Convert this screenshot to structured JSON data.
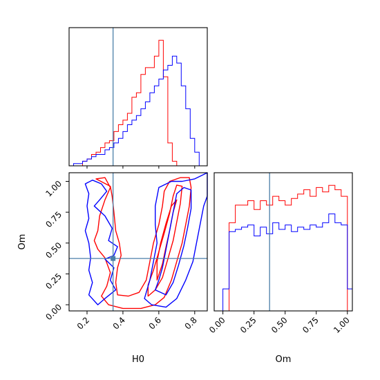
{
  "chart_data": [
    {
      "type": "histogram",
      "panel": "H0 marginal",
      "xlabel": "",
      "ylabel": "",
      "xlim": [
        0.1,
        0.87
      ],
      "truth": 0.345,
      "bin_edges": [
        0.1,
        0.125,
        0.15,
        0.175,
        0.2,
        0.225,
        0.25,
        0.275,
        0.3,
        0.325,
        0.35,
        0.375,
        0.4,
        0.425,
        0.45,
        0.475,
        0.5,
        0.525,
        0.55,
        0.575,
        0.6,
        0.625,
        0.65,
        0.675,
        0.7,
        0.725,
        0.75,
        0.775,
        0.8,
        0.825,
        0.85
      ],
      "series": [
        {
          "color": "#ff0000",
          "values": [
            0,
            0,
            0,
            2,
            3,
            5,
            6,
            8,
            10,
            11,
            15,
            18,
            20,
            23,
            30,
            32,
            40,
            43,
            43,
            48,
            55,
            39,
            10,
            2,
            0,
            0,
            0,
            0,
            0,
            0
          ]
        },
        {
          "color": "#0000ff",
          "values": [
            0,
            1,
            1,
            2,
            3,
            4,
            5,
            5,
            7,
            8,
            10,
            12,
            15,
            18,
            20,
            22,
            25,
            28,
            32,
            35,
            38,
            42,
            44,
            48,
            45,
            35,
            25,
            12,
            6,
            0
          ]
        }
      ]
    },
    {
      "type": "contour",
      "panel": "H0 vs Om",
      "xlabel": "H0",
      "ylabel": "Om",
      "xlim": [
        0.1,
        0.87
      ],
      "ylim": [
        -0.05,
        1.07
      ],
      "xticks": [
        "0.2",
        "0.4",
        "0.6",
        "0.8"
      ],
      "yticks": [
        "0.00",
        "0.25",
        "0.50",
        "0.75",
        "1.00"
      ],
      "truth": {
        "x": 0.345,
        "y": 0.375
      },
      "series": [
        {
          "color": "#ff0000",
          "contours": [
            [
              [
                0.25,
                1.02
              ],
              [
                0.3,
                1.03
              ],
              [
                0.33,
                0.95
              ],
              [
                0.3,
                0.85
              ],
              [
                0.27,
                0.72
              ],
              [
                0.26,
                0.6
              ],
              [
                0.24,
                0.52
              ],
              [
                0.26,
                0.45
              ],
              [
                0.3,
                0.38
              ],
              [
                0.33,
                0.26
              ],
              [
                0.31,
                0.15
              ],
              [
                0.28,
                0.07
              ],
              [
                0.32,
                0.0
              ],
              [
                0.4,
                -0.03
              ],
              [
                0.5,
                -0.03
              ],
              [
                0.58,
                0.0
              ],
              [
                0.63,
                0.06
              ],
              [
                0.67,
                0.2
              ],
              [
                0.7,
                0.35
              ],
              [
                0.73,
                0.5
              ],
              [
                0.75,
                0.65
              ],
              [
                0.77,
                0.8
              ],
              [
                0.78,
                0.95
              ],
              [
                0.77,
                1.03
              ],
              [
                0.72,
                1.03
              ],
              [
                0.66,
                1.0
              ],
              [
                0.63,
                0.92
              ],
              [
                0.62,
                0.8
              ],
              [
                0.6,
                0.65
              ],
              [
                0.57,
                0.5
              ],
              [
                0.55,
                0.35
              ],
              [
                0.53,
                0.2
              ],
              [
                0.49,
                0.1
              ],
              [
                0.43,
                0.07
              ],
              [
                0.37,
                0.08
              ],
              [
                0.36,
                0.18
              ],
              [
                0.37,
                0.3
              ],
              [
                0.39,
                0.4
              ],
              [
                0.38,
                0.5
              ],
              [
                0.36,
                0.6
              ],
              [
                0.35,
                0.75
              ],
              [
                0.34,
                0.88
              ],
              [
                0.33,
                0.96
              ]
            ],
            [
              [
                0.54,
                0.07
              ],
              [
                0.58,
                0.12
              ],
              [
                0.62,
                0.22
              ],
              [
                0.65,
                0.37
              ],
              [
                0.68,
                0.52
              ],
              [
                0.7,
                0.67
              ],
              [
                0.72,
                0.82
              ],
              [
                0.73,
                0.96
              ],
              [
                0.7,
                0.97
              ],
              [
                0.68,
                0.88
              ],
              [
                0.66,
                0.74
              ],
              [
                0.63,
                0.58
              ],
              [
                0.6,
                0.43
              ],
              [
                0.57,
                0.28
              ],
              [
                0.54,
                0.16
              ]
            ],
            [
              [
                0.59,
                0.2
              ],
              [
                0.62,
                0.33
              ],
              [
                0.64,
                0.47
              ],
              [
                0.66,
                0.6
              ],
              [
                0.68,
                0.75
              ],
              [
                0.7,
                0.85
              ],
              [
                0.67,
                0.8
              ],
              [
                0.64,
                0.66
              ],
              [
                0.61,
                0.5
              ],
              [
                0.59,
                0.35
              ]
            ]
          ]
        },
        {
          "color": "#0000ff",
          "contours": [
            [
              [
                0.19,
                0.98
              ],
              [
                0.23,
                1.01
              ],
              [
                0.28,
                0.98
              ],
              [
                0.31,
                0.92
              ],
              [
                0.27,
                0.85
              ],
              [
                0.24,
                0.8
              ],
              [
                0.3,
                0.72
              ],
              [
                0.34,
                0.62
              ],
              [
                0.32,
                0.52
              ],
              [
                0.37,
                0.47
              ],
              [
                0.35,
                0.4
              ],
              [
                0.3,
                0.37
              ],
              [
                0.35,
                0.3
              ],
              [
                0.33,
                0.2
              ],
              [
                0.36,
                0.12
              ],
              [
                0.3,
                0.05
              ],
              [
                0.26,
                0.0
              ],
              [
                0.21,
                0.08
              ],
              [
                0.23,
                0.18
              ],
              [
                0.21,
                0.28
              ],
              [
                0.22,
                0.38
              ],
              [
                0.21,
                0.5
              ],
              [
                0.19,
                0.6
              ],
              [
                0.21,
                0.7
              ],
              [
                0.2,
                0.8
              ],
              [
                0.21,
                0.9
              ]
            ],
            [
              [
                0.52,
                0.05
              ],
              [
                0.56,
                0.0
              ],
              [
                0.64,
                -0.02
              ],
              [
                0.7,
                0.05
              ],
              [
                0.75,
                0.2
              ],
              [
                0.79,
                0.35
              ],
              [
                0.81,
                0.5
              ],
              [
                0.83,
                0.65
              ],
              [
                0.85,
                0.8
              ],
              [
                0.87,
                0.88
              ],
              [
                0.87,
                1.07
              ],
              [
                0.8,
                1.02
              ],
              [
                0.73,
                1.0
              ],
              [
                0.67,
                1.0
              ],
              [
                0.6,
                0.95
              ],
              [
                0.58,
                0.8
              ],
              [
                0.58,
                0.65
              ],
              [
                0.59,
                0.5
              ],
              [
                0.57,
                0.35
              ],
              [
                0.55,
                0.2
              ]
            ],
            [
              [
                0.58,
                0.12
              ],
              [
                0.64,
                0.08
              ],
              [
                0.68,
                0.18
              ],
              [
                0.71,
                0.32
              ],
              [
                0.74,
                0.48
              ],
              [
                0.76,
                0.62
              ],
              [
                0.78,
                0.78
              ],
              [
                0.78,
                0.93
              ],
              [
                0.74,
                0.95
              ],
              [
                0.7,
                0.9
              ],
              [
                0.68,
                0.75
              ],
              [
                0.66,
                0.6
              ],
              [
                0.64,
                0.45
              ],
              [
                0.62,
                0.3
              ],
              [
                0.6,
                0.2
              ]
            ]
          ]
        }
      ]
    },
    {
      "type": "histogram",
      "panel": "Om marginal",
      "xlabel": "Om",
      "ylabel": "",
      "xlim": [
        -0.07,
        1.04
      ],
      "xticks": [
        "0.00",
        "0.25",
        "0.50",
        "0.75",
        "1.00"
      ],
      "truth": 0.375,
      "bin_edges": [
        -0.05,
        0.0,
        0.05,
        0.1,
        0.15,
        0.2,
        0.25,
        0.3,
        0.35,
        0.4,
        0.45,
        0.5,
        0.55,
        0.6,
        0.65,
        0.7,
        0.75,
        0.8,
        0.85,
        0.9,
        0.95,
        1.0,
        1.05
      ],
      "series": [
        {
          "color": "#ff0000",
          "values": [
            0,
            0,
            40,
            48,
            48,
            50,
            46,
            50,
            48,
            52,
            50,
            48,
            51,
            53,
            55,
            52,
            56,
            54,
            57,
            55,
            52,
            0
          ]
        },
        {
          "color": "#0000ff",
          "values": [
            0,
            10,
            36,
            37,
            38,
            39,
            34,
            38,
            35,
            40,
            37,
            39,
            36,
            38,
            37,
            39,
            38,
            40,
            44,
            40,
            39,
            10
          ]
        }
      ]
    }
  ]
}
